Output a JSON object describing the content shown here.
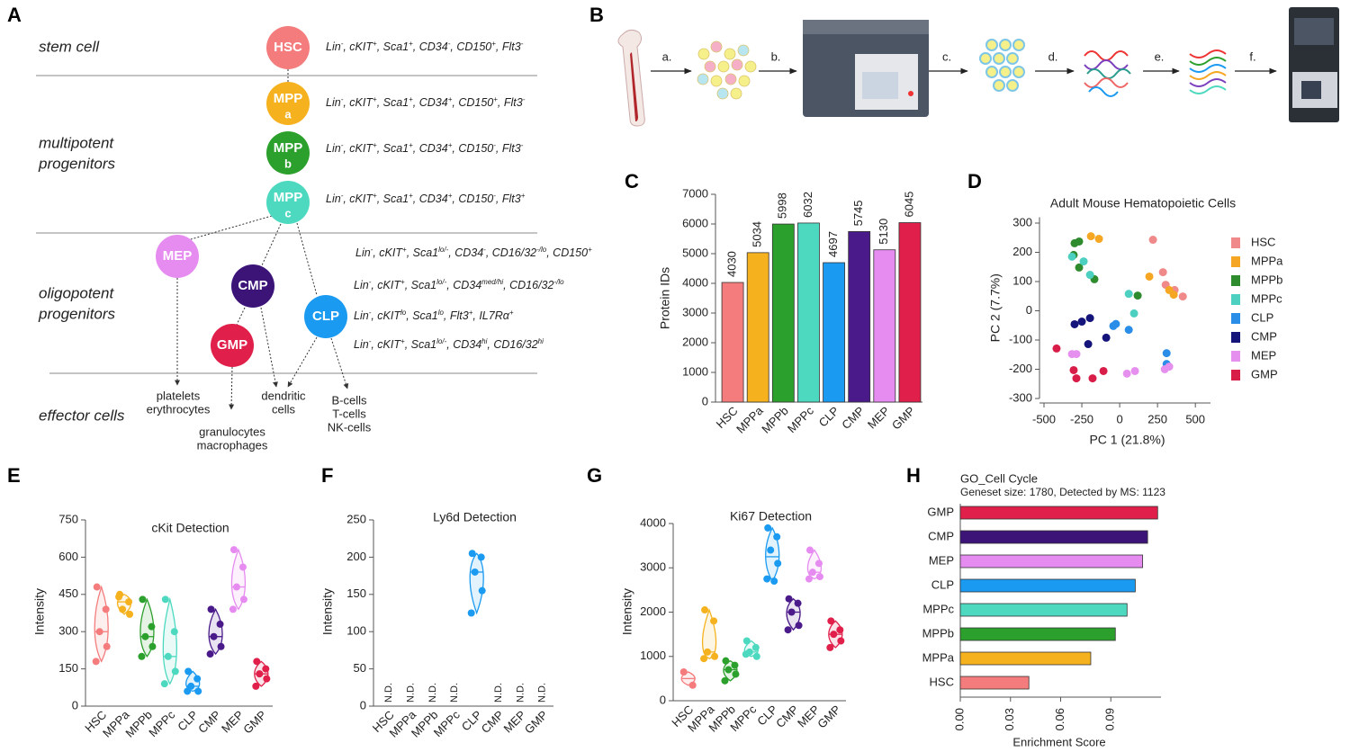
{
  "panel_labels": [
    "A",
    "B",
    "C",
    "D",
    "E",
    "F",
    "G",
    "H"
  ],
  "hierarchy": {
    "tiers": [
      [
        "stem cell"
      ],
      [
        "multipotent",
        "progenitors"
      ],
      [
        "oligopotent",
        "progenitors"
      ],
      [
        "effector cells"
      ]
    ],
    "nodes": [
      {
        "label": "HSC",
        "color": "#f47c7c",
        "markers": [
          [
            "Lin",
            "-"
          ],
          [
            ", cKIT",
            "+"
          ],
          [
            ", Sca1",
            "+"
          ],
          [
            ", CD34",
            "-"
          ],
          [
            ", CD150",
            "+"
          ],
          [
            ", Flt3",
            "-"
          ]
        ]
      },
      {
        "label": "MPP",
        "sub": "a",
        "color": "#f5b21e",
        "markers": [
          [
            "Lin",
            "-"
          ],
          [
            ", cKIT",
            "+"
          ],
          [
            ", Sca1",
            "+"
          ],
          [
            ", CD34",
            "+"
          ],
          [
            ", CD150",
            "+"
          ],
          [
            ", Flt3",
            "-"
          ]
        ]
      },
      {
        "label": "MPP",
        "sub": "b",
        "color": "#2ca02c",
        "markers": [
          [
            "Lin",
            "-"
          ],
          [
            ", cKIT",
            "+"
          ],
          [
            ", Sca1",
            "+"
          ],
          [
            ", CD34",
            "+"
          ],
          [
            ", CD150",
            "-"
          ],
          [
            ", Flt3",
            "-"
          ]
        ]
      },
      {
        "label": "MPP",
        "sub": "c",
        "color": "#4dd9c0",
        "markers": [
          [
            "Lin",
            "-"
          ],
          [
            ", cKIT",
            "+"
          ],
          [
            ", Sca1",
            "+"
          ],
          [
            ", CD34",
            "+"
          ],
          [
            ", CD150",
            "-"
          ],
          [
            ", Flt3",
            "+"
          ]
        ]
      },
      {
        "label": "MEP",
        "color": "#e68cf0",
        "markers": [
          [
            "Lin",
            "-"
          ],
          [
            ", cKIT",
            "+"
          ],
          [
            ", Sca1",
            "lo/-"
          ],
          [
            ", CD34",
            "-"
          ],
          [
            ", CD16/32",
            "-/lo"
          ],
          [
            ", CD150",
            "+"
          ]
        ]
      },
      {
        "label": "CMP",
        "color": "#3c1478",
        "markers": [
          [
            "Lin",
            "-"
          ],
          [
            ", cKIT",
            "+"
          ],
          [
            ", Sca1",
            "lo/-"
          ],
          [
            ", CD34",
            "med/hi"
          ],
          [
            ", CD16/32",
            "-/lo"
          ]
        ]
      },
      {
        "label": "CLP",
        "color": "#1a9af0",
        "markers": [
          [
            "Lin",
            "-"
          ],
          [
            ", cKIT",
            "lo"
          ],
          [
            ", Sca1",
            "lo"
          ],
          [
            ", Flt3",
            "+"
          ],
          [
            ", IL7Rα",
            "+"
          ]
        ]
      },
      {
        "label": "GMP",
        "color": "#e0204a",
        "markers": [
          [
            "Lin",
            "-"
          ],
          [
            ", cKIT",
            "+"
          ],
          [
            ", Sca1",
            "lo/-"
          ],
          [
            ", CD34",
            "hi"
          ],
          [
            ", CD16/32",
            "hi"
          ]
        ]
      }
    ],
    "effectors": [
      [
        "platelets",
        "erythrocytes"
      ],
      [
        "granulocytes",
        "macrophages"
      ],
      [
        "dendritic",
        "cells"
      ],
      [
        "B-cells",
        "T-cells",
        "NK-cells"
      ]
    ]
  },
  "workflow": {
    "steps": [
      "a.",
      "b.",
      "c.",
      "d.",
      "e.",
      "f."
    ]
  },
  "chart_data": [
    {
      "type": "bar",
      "ylabel": "Protein IDs",
      "categories": [
        "HSC",
        "MPPa",
        "MPPb",
        "MPPc",
        "CLP",
        "CMP",
        "MEP",
        "GMP"
      ],
      "values": [
        4030,
        5034,
        5998,
        6032,
        4697,
        5745,
        5130,
        6045
      ],
      "colors": [
        "#f47c7c",
        "#f5b21e",
        "#2ca02c",
        "#4dd9c0",
        "#1a9af0",
        "#4a1a8a",
        "#e68cf0",
        "#e0204a"
      ],
      "ylim": [
        0,
        7000
      ],
      "yticks": [
        0,
        1000,
        2000,
        3000,
        4000,
        5000,
        6000,
        7000
      ]
    },
    {
      "type": "scatter",
      "title": "Adult Mouse Hematopoietic Cells",
      "xlabel": "PC 1 (21.8%)",
      "ylabel": "PC 2 (7.7%)",
      "xlim": [
        -500,
        600
      ],
      "xticks": [
        -500,
        -250,
        0,
        250,
        500
      ],
      "ylim": [
        -300,
        320
      ],
      "yticks": [
        -300,
        -200,
        -100,
        0,
        100,
        200,
        300
      ],
      "series": [
        {
          "name": "HSC",
          "color": "#f08a8a",
          "x": [
            220,
            286,
            304,
            363,
            417
          ],
          "values": [
            243,
            132,
            89,
            71,
            49
          ]
        },
        {
          "name": "MPPa",
          "color": "#f5a623",
          "x": [
            -190,
            -137,
            196,
            327,
            357
          ],
          "values": [
            255,
            246,
            117,
            71,
            55
          ]
        },
        {
          "name": "MPPb",
          "color": "#2e8b2e",
          "x": [
            -298,
            -268,
            -304,
            -268,
            -167,
            119
          ],
          "values": [
            231,
            237,
            191,
            148,
            108,
            52
          ]
        },
        {
          "name": "MPPc",
          "color": "#4dd0c0",
          "x": [
            -315,
            -238,
            -196,
            60,
            95
          ],
          "values": [
            185,
            169,
            123,
            58,
            -9
          ]
        },
        {
          "name": "CLP",
          "color": "#2a8de8",
          "x": [
            -42,
            60,
            310,
            310,
            -25
          ],
          "values": [
            -52,
            -65,
            -145,
            -182,
            -45
          ]
        },
        {
          "name": "CMP",
          "color": "#14147a",
          "x": [
            -298,
            -250,
            -196,
            -208,
            -89
          ],
          "values": [
            -46,
            -37,
            -25,
            -114,
            -92
          ]
        },
        {
          "name": "MEP",
          "color": "#e590ee",
          "x": [
            -315,
            -286,
            48,
            101,
            298,
            327
          ],
          "values": [
            -148,
            -148,
            -215,
            -206,
            -200,
            -191
          ]
        },
        {
          "name": "GMP",
          "color": "#d81e48",
          "x": [
            -417,
            -304,
            -286,
            -179,
            -107
          ],
          "values": [
            -129,
            -203,
            -231,
            -231,
            -206
          ]
        }
      ]
    },
    {
      "type": "violin",
      "title": "cKit Detection",
      "ylabel": "Intensity",
      "categories": [
        "HSC",
        "MPPa",
        "MPPb",
        "MPPc",
        "CLP",
        "CMP",
        "MEP",
        "GMP"
      ],
      "colors": [
        "#f47c7c",
        "#f5b21e",
        "#2ca02c",
        "#4dd9c0",
        "#1a9af0",
        "#4a1a8a",
        "#e68cf0",
        "#e0204a"
      ],
      "values": [
        [
          480,
          390,
          300,
          240,
          180
        ],
        [
          450,
          420,
          390,
          370,
          440
        ],
        [
          430,
          320,
          280,
          240,
          200
        ],
        [
          430,
          300,
          200,
          140,
          90
        ],
        [
          140,
          110,
          80,
          60,
          60
        ],
        [
          390,
          330,
          280,
          240,
          210
        ],
        [
          630,
          560,
          480,
          430,
          390
        ],
        [
          180,
          150,
          130,
          110,
          80
        ]
      ],
      "ylim": [
        0,
        750
      ],
      "yticks": [
        0,
        150,
        300,
        450,
        600,
        750
      ]
    },
    {
      "type": "violin",
      "title": "Ly6d Detection",
      "ylabel": "Intensity",
      "categories": [
        "HSC",
        "MPPa",
        "MPPb",
        "MPPc",
        "CLP",
        "CMP",
        "MEP",
        "GMP"
      ],
      "colors": [
        "#f47c7c",
        "#f5b21e",
        "#2ca02c",
        "#4dd9c0",
        "#1a9af0",
        "#4a1a8a",
        "#e68cf0",
        "#e0204a"
      ],
      "values": [
        null,
        null,
        null,
        null,
        [
          205,
          200,
          180,
          155,
          125
        ],
        null,
        null,
        null
      ],
      "value_labels": [
        "N.D.",
        "N.D.",
        "N.D.",
        "N.D.",
        null,
        "N.D.",
        "N.D.",
        "N.D."
      ],
      "ylim": [
        0,
        250
      ],
      "yticks": [
        0,
        50,
        100,
        150,
        200,
        250
      ]
    },
    {
      "type": "violin",
      "title": "Ki67 Detection",
      "ylabel": "Intensity",
      "categories": [
        "HSC",
        "MPPa",
        "MPPb",
        "MPPc",
        "CLP",
        "CMP",
        "MEP",
        "GMP"
      ],
      "colors": [
        "#f47c7c",
        "#f5b21e",
        "#2ca02c",
        "#4dd9c0",
        "#1a9af0",
        "#4a1a8a",
        "#e68cf0",
        "#e0204a"
      ],
      "values": [
        [
          650,
          350
        ],
        [
          2050,
          1800,
          1100,
          1000,
          950
        ],
        [
          900,
          800,
          700,
          600,
          450
        ],
        [
          1350,
          1200,
          1100,
          1000,
          1050
        ],
        [
          3900,
          3700,
          3400,
          3100,
          2750,
          2700
        ],
        [
          2300,
          2200,
          2000,
          1700,
          1600
        ],
        [
          3400,
          3100,
          2900,
          2800,
          2750
        ],
        [
          1800,
          1600,
          1500,
          1350,
          1200
        ]
      ],
      "ylim": [
        0,
        4000
      ],
      "yticks": [
        0,
        1000,
        2000,
        3000,
        4000
      ]
    },
    {
      "type": "hbar",
      "title": "GO_Cell Cycle",
      "subtitle": "Geneset size: 1780, Detected by MS: 1123",
      "xlabel": "Enrichment Score",
      "categories": [
        "GMP",
        "CMP",
        "MEP",
        "CLP",
        "MPPc",
        "MPPb",
        "MPPa",
        "HSC"
      ],
      "values": [
        0.118,
        0.112,
        0.109,
        0.1046,
        0.0997,
        0.0927,
        0.078,
        0.041
      ],
      "colors": [
        "#e0204a",
        "#3c1478",
        "#e68cf0",
        "#1a9af0",
        "#4dd9c0",
        "#2ca02c",
        "#f5b21e",
        "#f47c7c"
      ],
      "xlim": [
        0,
        0.12
      ],
      "xticks": [
        {
          "value": 0,
          "label": "0.00"
        },
        0.03,
        0.06,
        0.09
      ]
    }
  ]
}
